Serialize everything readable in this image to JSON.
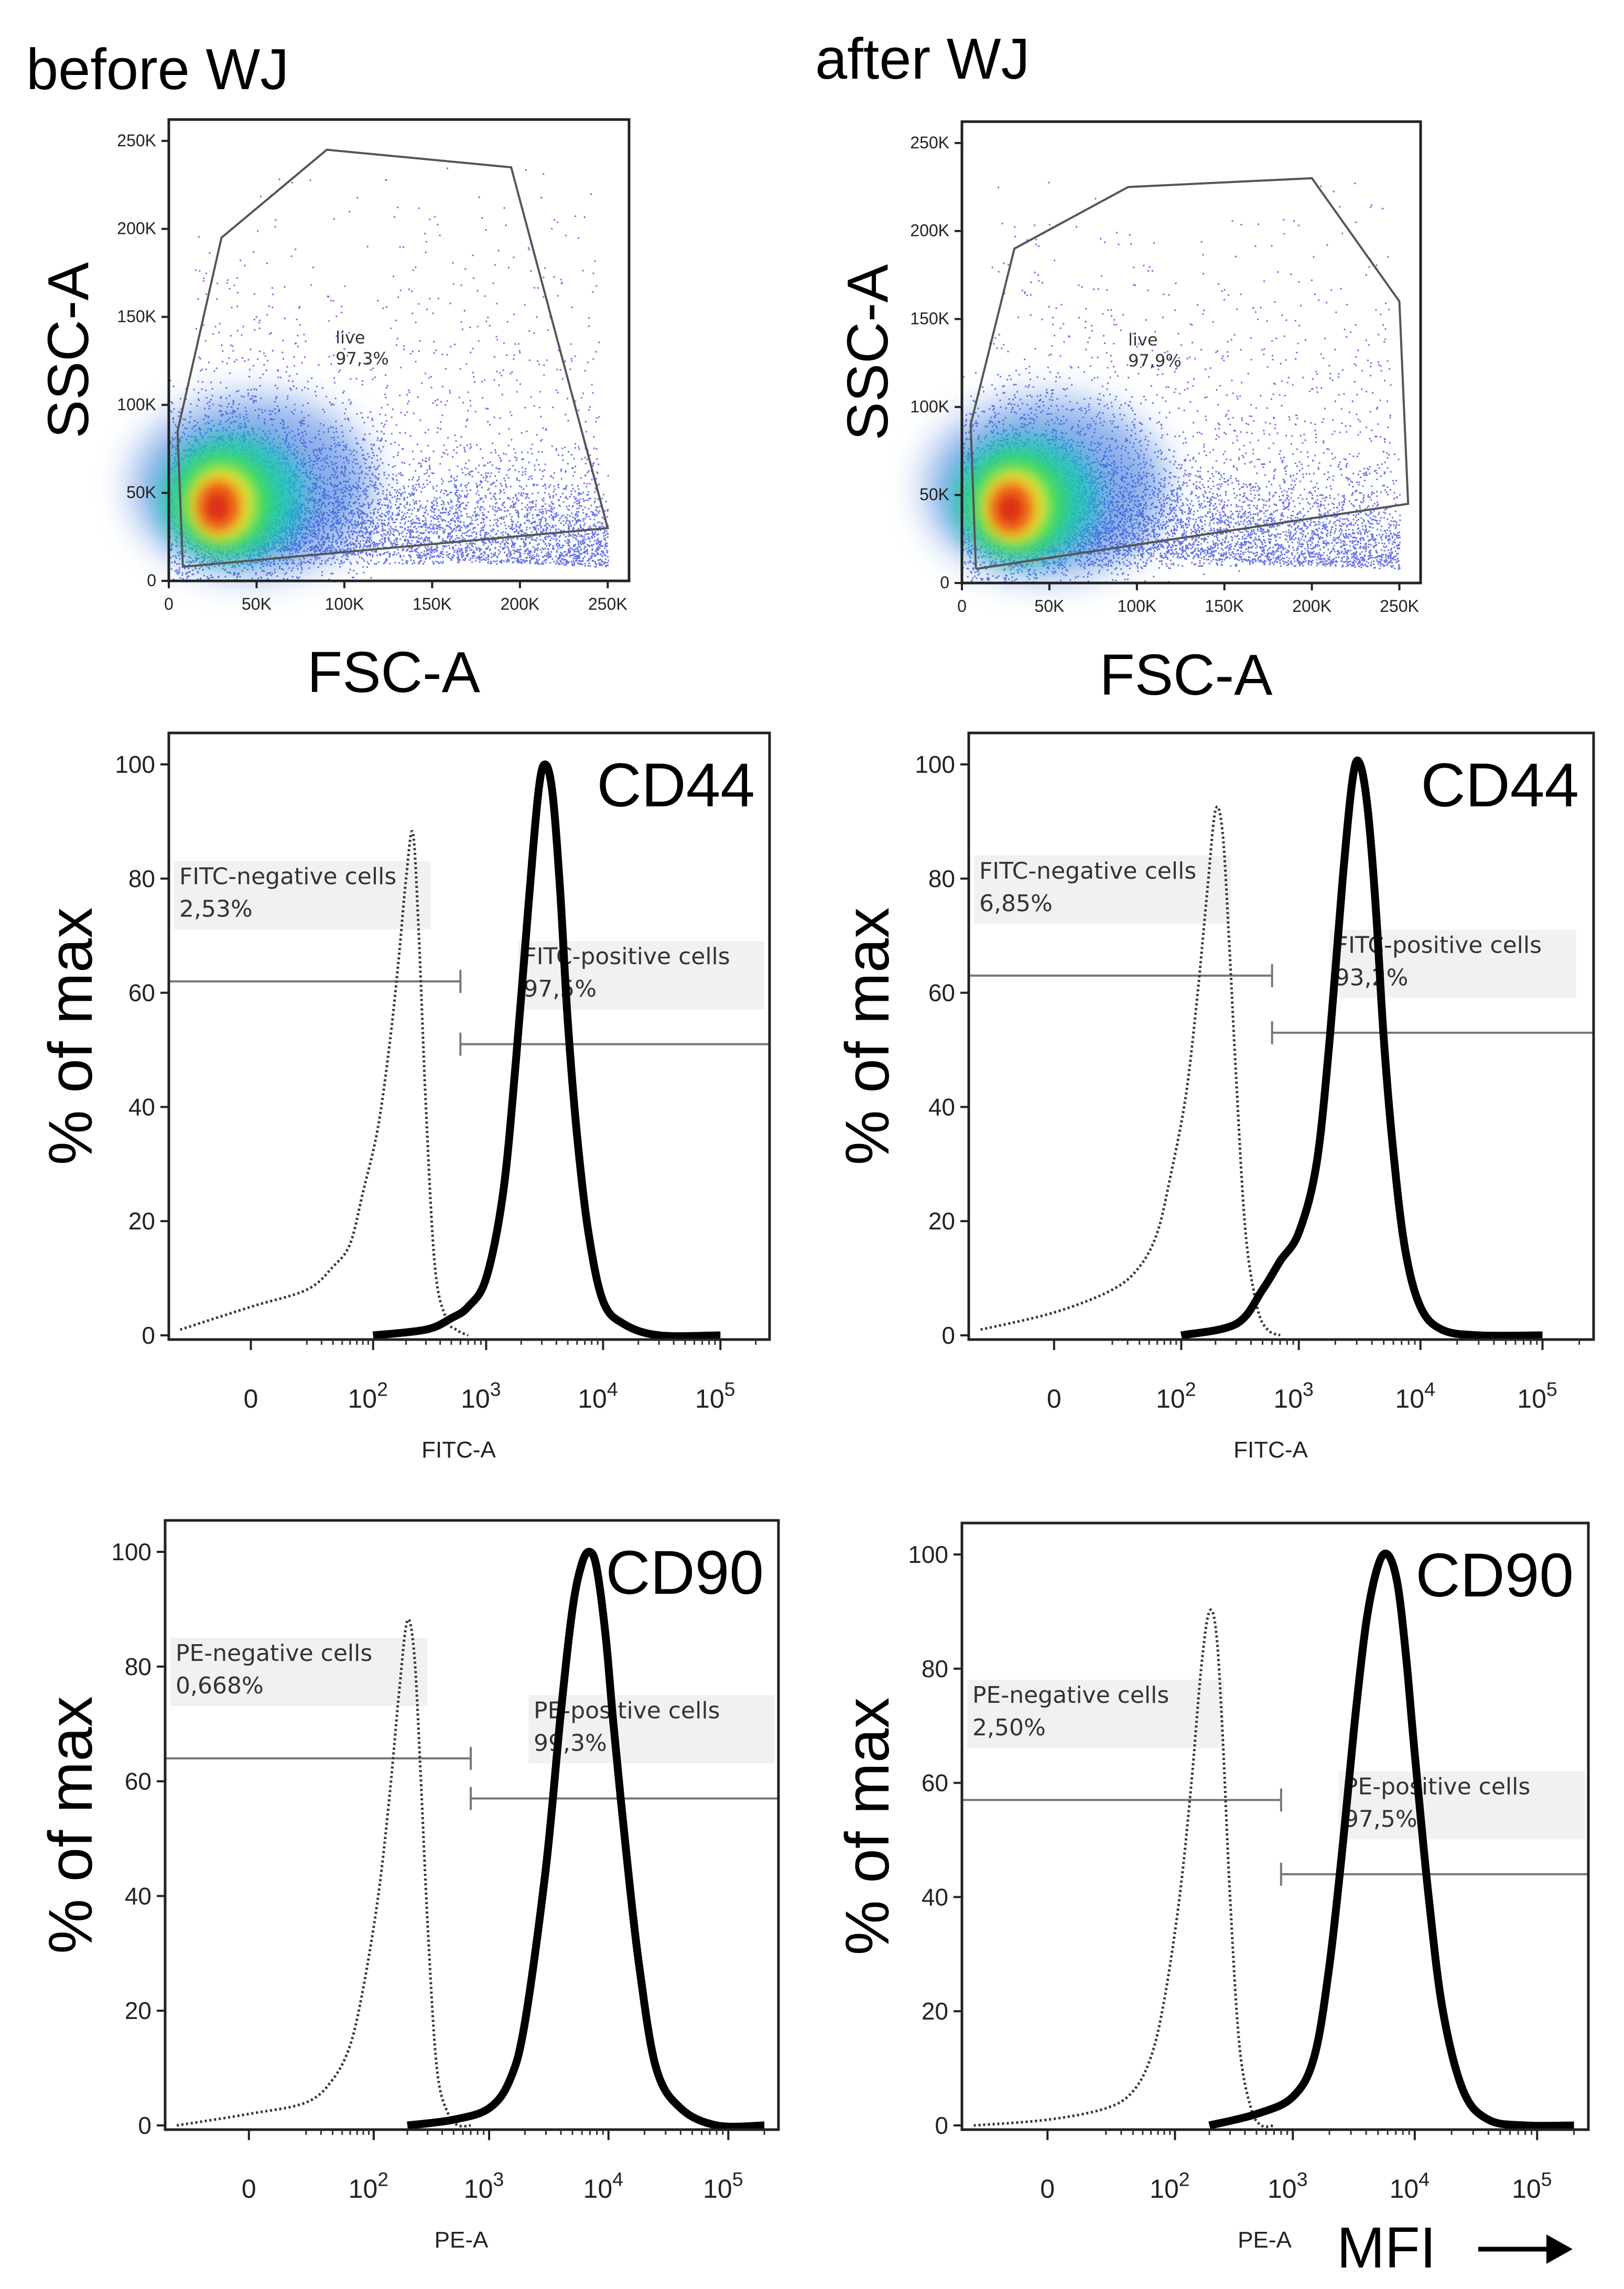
{
  "columns": [
    {
      "title": "before WJ"
    },
    {
      "title": "after WJ"
    }
  ],
  "mfi_label": "MFI",
  "chart_data": [
    {
      "type": "scatter",
      "panel": "scatter-before",
      "title": "before WJ",
      "xlabel": "FSC-A",
      "ylabel": "SSC-A",
      "xlim": [
        0,
        262144
      ],
      "ylim": [
        0,
        262144
      ],
      "x_ticks": [
        "0",
        "50K",
        "100K",
        "150K",
        "200K",
        "250K"
      ],
      "y_ticks": [
        "0",
        "50K",
        "100K",
        "150K",
        "200K",
        "250K"
      ],
      "gate": {
        "label": "live",
        "percent": "97,3%",
        "polygon": [
          [
            8000,
            8000
          ],
          [
            5000,
            85000
          ],
          [
            30000,
            195000
          ],
          [
            90000,
            245000
          ],
          [
            195000,
            235000
          ],
          [
            250000,
            30000
          ],
          [
            8000,
            8000
          ]
        ]
      },
      "density": {
        "peak": [
          30000,
          45000
        ],
        "spread": [
          22000,
          18000
        ]
      }
    },
    {
      "type": "scatter",
      "panel": "scatter-after",
      "title": "after WJ",
      "xlabel": "FSC-A",
      "ylabel": "SSC-A",
      "xlim": [
        0,
        262144
      ],
      "ylim": [
        0,
        262144
      ],
      "x_ticks": [
        "0",
        "50K",
        "100K",
        "150K",
        "200K",
        "250K"
      ],
      "y_ticks": [
        "0",
        "50K",
        "100K",
        "150K",
        "200K",
        "250K"
      ],
      "gate": {
        "label": "live",
        "percent": "97,9%",
        "polygon": [
          [
            8000,
            8000
          ],
          [
            5000,
            90000
          ],
          [
            30000,
            190000
          ],
          [
            95000,
            225000
          ],
          [
            200000,
            230000
          ],
          [
            250000,
            160000
          ],
          [
            255000,
            45000
          ],
          [
            8000,
            8000
          ]
        ]
      },
      "density": {
        "peak": [
          30000,
          45000
        ],
        "spread": [
          22000,
          18000
        ]
      }
    },
    {
      "type": "line",
      "panel": "cd44-before",
      "marker": "CD44",
      "xlabel": "FITC-A",
      "ylabel": "% of max",
      "ylim": [
        0,
        100
      ],
      "x_ticks": [
        "0",
        "10^2",
        "10^3",
        "10^4",
        "10^5"
      ],
      "y_ticks": [
        "0",
        "20",
        "40",
        "60",
        "80",
        "100"
      ],
      "series": [
        {
          "name": "FITC-negative cells",
          "style": "dotted",
          "x": [
            -30,
            0,
            20,
            40,
            60,
            80,
            110,
            140,
            170,
            200,
            230,
            260,
            300,
            360,
            450,
            550,
            700
          ],
          "y": [
            1,
            5,
            8,
            12,
            16,
            25,
            36,
            50,
            65,
            80,
            88,
            70,
            40,
            12,
            3,
            1,
            0
          ]
        },
        {
          "name": "FITC-positive cells",
          "style": "solid",
          "x": [
            100,
            300,
            500,
            700,
            1000,
            1400,
            1800,
            2300,
            2800,
            3200,
            3700,
            4300,
            5000,
            6000,
            7500,
            10000,
            15000,
            30000,
            100000
          ],
          "y": [
            0,
            1,
            3,
            5,
            10,
            25,
            48,
            75,
            95,
            100,
            95,
            78,
            55,
            35,
            18,
            6,
            2,
            0,
            0
          ]
        }
      ],
      "gates": [
        {
          "name": "FITC-negative cells",
          "percent": "2,53%",
          "x_range": [
            -40,
            600
          ],
          "y": 62
        },
        {
          "name": "FITC-positive cells",
          "percent": "97,5%",
          "x_range": [
            600,
            262000
          ],
          "y": 51
        }
      ]
    },
    {
      "type": "line",
      "panel": "cd44-after",
      "marker": "CD44",
      "xlabel": "FITC-A",
      "ylabel": "% of max",
      "ylim": [
        0,
        100
      ],
      "x_ticks": [
        "0",
        "10^2",
        "10^3",
        "10^4",
        "10^5"
      ],
      "y_ticks": [
        "0",
        "20",
        "40",
        "60",
        "80",
        "100"
      ],
      "series": [
        {
          "name": "FITC-negative cells",
          "style": "dotted",
          "x": [
            -30,
            0,
            20,
            40,
            60,
            80,
            110,
            140,
            170,
            200,
            230,
            260,
            300,
            360,
            450,
            550,
            700
          ],
          "y": [
            1,
            4,
            8,
            12,
            18,
            28,
            42,
            60,
            78,
            92,
            88,
            70,
            45,
            18,
            5,
            1,
            0
          ]
        },
        {
          "name": "FITC-positive cells",
          "style": "solid",
          "x": [
            100,
            300,
            500,
            700,
            1000,
            1400,
            1800,
            2300,
            2800,
            3200,
            3700,
            4300,
            5000,
            6000,
            7500,
            10000,
            15000,
            30000,
            100000
          ],
          "y": [
            0,
            2,
            8,
            13,
            18,
            30,
            52,
            80,
            98,
            100,
            92,
            75,
            52,
            32,
            15,
            5,
            1,
            0,
            0
          ]
        }
      ],
      "gates": [
        {
          "name": "FITC-negative cells",
          "percent": "6,85%",
          "x_range": [
            -40,
            600
          ],
          "y": 63
        },
        {
          "name": "FITC-positive cells",
          "percent": "93,2%",
          "x_range": [
            600,
            262000
          ],
          "y": 53
        }
      ]
    },
    {
      "type": "line",
      "panel": "cd90-before",
      "marker": "CD90",
      "xlabel": "PE-A",
      "ylabel": "% of max",
      "ylim": [
        0,
        100
      ],
      "x_ticks": [
        "0",
        "10^2",
        "10^3",
        "10^4",
        "10^5"
      ],
      "y_ticks": [
        "0",
        "20",
        "40",
        "60",
        "80",
        "100"
      ],
      "series": [
        {
          "name": "PE-negative cells",
          "style": "dotted",
          "x": [
            -30,
            0,
            20,
            40,
            60,
            80,
            110,
            140,
            170,
            200,
            230,
            260,
            300,
            360,
            450,
            550,
            700
          ],
          "y": [
            0,
            2,
            4,
            8,
            14,
            24,
            40,
            58,
            76,
            88,
            82,
            62,
            35,
            10,
            2,
            0,
            0
          ]
        },
        {
          "name": "PE-positive cells",
          "style": "solid",
          "x": [
            200,
            500,
            1000,
            1500,
            2000,
            3000,
            4000,
            5000,
            6000,
            7000,
            8000,
            9500,
            11000,
            14000,
            18000,
            25000,
            40000,
            80000,
            200000
          ],
          "y": [
            0,
            1,
            3,
            8,
            18,
            45,
            72,
            90,
            98,
            100,
            97,
            85,
            70,
            48,
            28,
            10,
            3,
            0,
            0
          ]
        }
      ],
      "gates": [
        {
          "name": "PE-negative cells",
          "percent": "0,668%",
          "x_range": [
            -40,
            700
          ],
          "y": 64
        },
        {
          "name": "PE-positive cells",
          "percent": "99,3%",
          "x_range": [
            700,
            262000
          ],
          "y": 57
        }
      ]
    },
    {
      "type": "line",
      "panel": "cd90-after",
      "marker": "CD90",
      "xlabel": "PE-A",
      "ylabel": "% of max",
      "ylim": [
        0,
        100
      ],
      "x_ticks": [
        "0",
        "10^2",
        "10^3",
        "10^4",
        "10^5"
      ],
      "y_ticks": [
        "0",
        "20",
        "40",
        "60",
        "80",
        "100"
      ],
      "series": [
        {
          "name": "PE-negative cells",
          "style": "dotted",
          "x": [
            -30,
            0,
            20,
            40,
            60,
            80,
            110,
            140,
            170,
            200,
            230,
            260,
            300,
            360,
            450,
            550,
            700
          ],
          "y": [
            0,
            1,
            3,
            6,
            12,
            22,
            40,
            60,
            80,
            90,
            86,
            68,
            40,
            14,
            3,
            0,
            0
          ]
        },
        {
          "name": "PE-positive cells",
          "style": "solid",
          "x": [
            200,
            500,
            1000,
            1500,
            2000,
            2600,
            3200,
            4000,
            5000,
            6000,
            7200,
            8500,
            10000,
            13000,
            17000,
            25000,
            40000,
            80000,
            200000
          ],
          "y": [
            0,
            2,
            5,
            12,
            28,
            50,
            70,
            88,
            98,
            100,
            95,
            82,
            65,
            40,
            20,
            6,
            1,
            0,
            0
          ]
        }
      ],
      "gates": [
        {
          "name": "PE-negative cells",
          "percent": "2,50%",
          "x_range": [
            -40,
            800
          ],
          "y": 57
        },
        {
          "name": "PE-positive cells",
          "percent": "97,5%",
          "x_range": [
            800,
            262000
          ],
          "y": 44
        }
      ]
    }
  ]
}
